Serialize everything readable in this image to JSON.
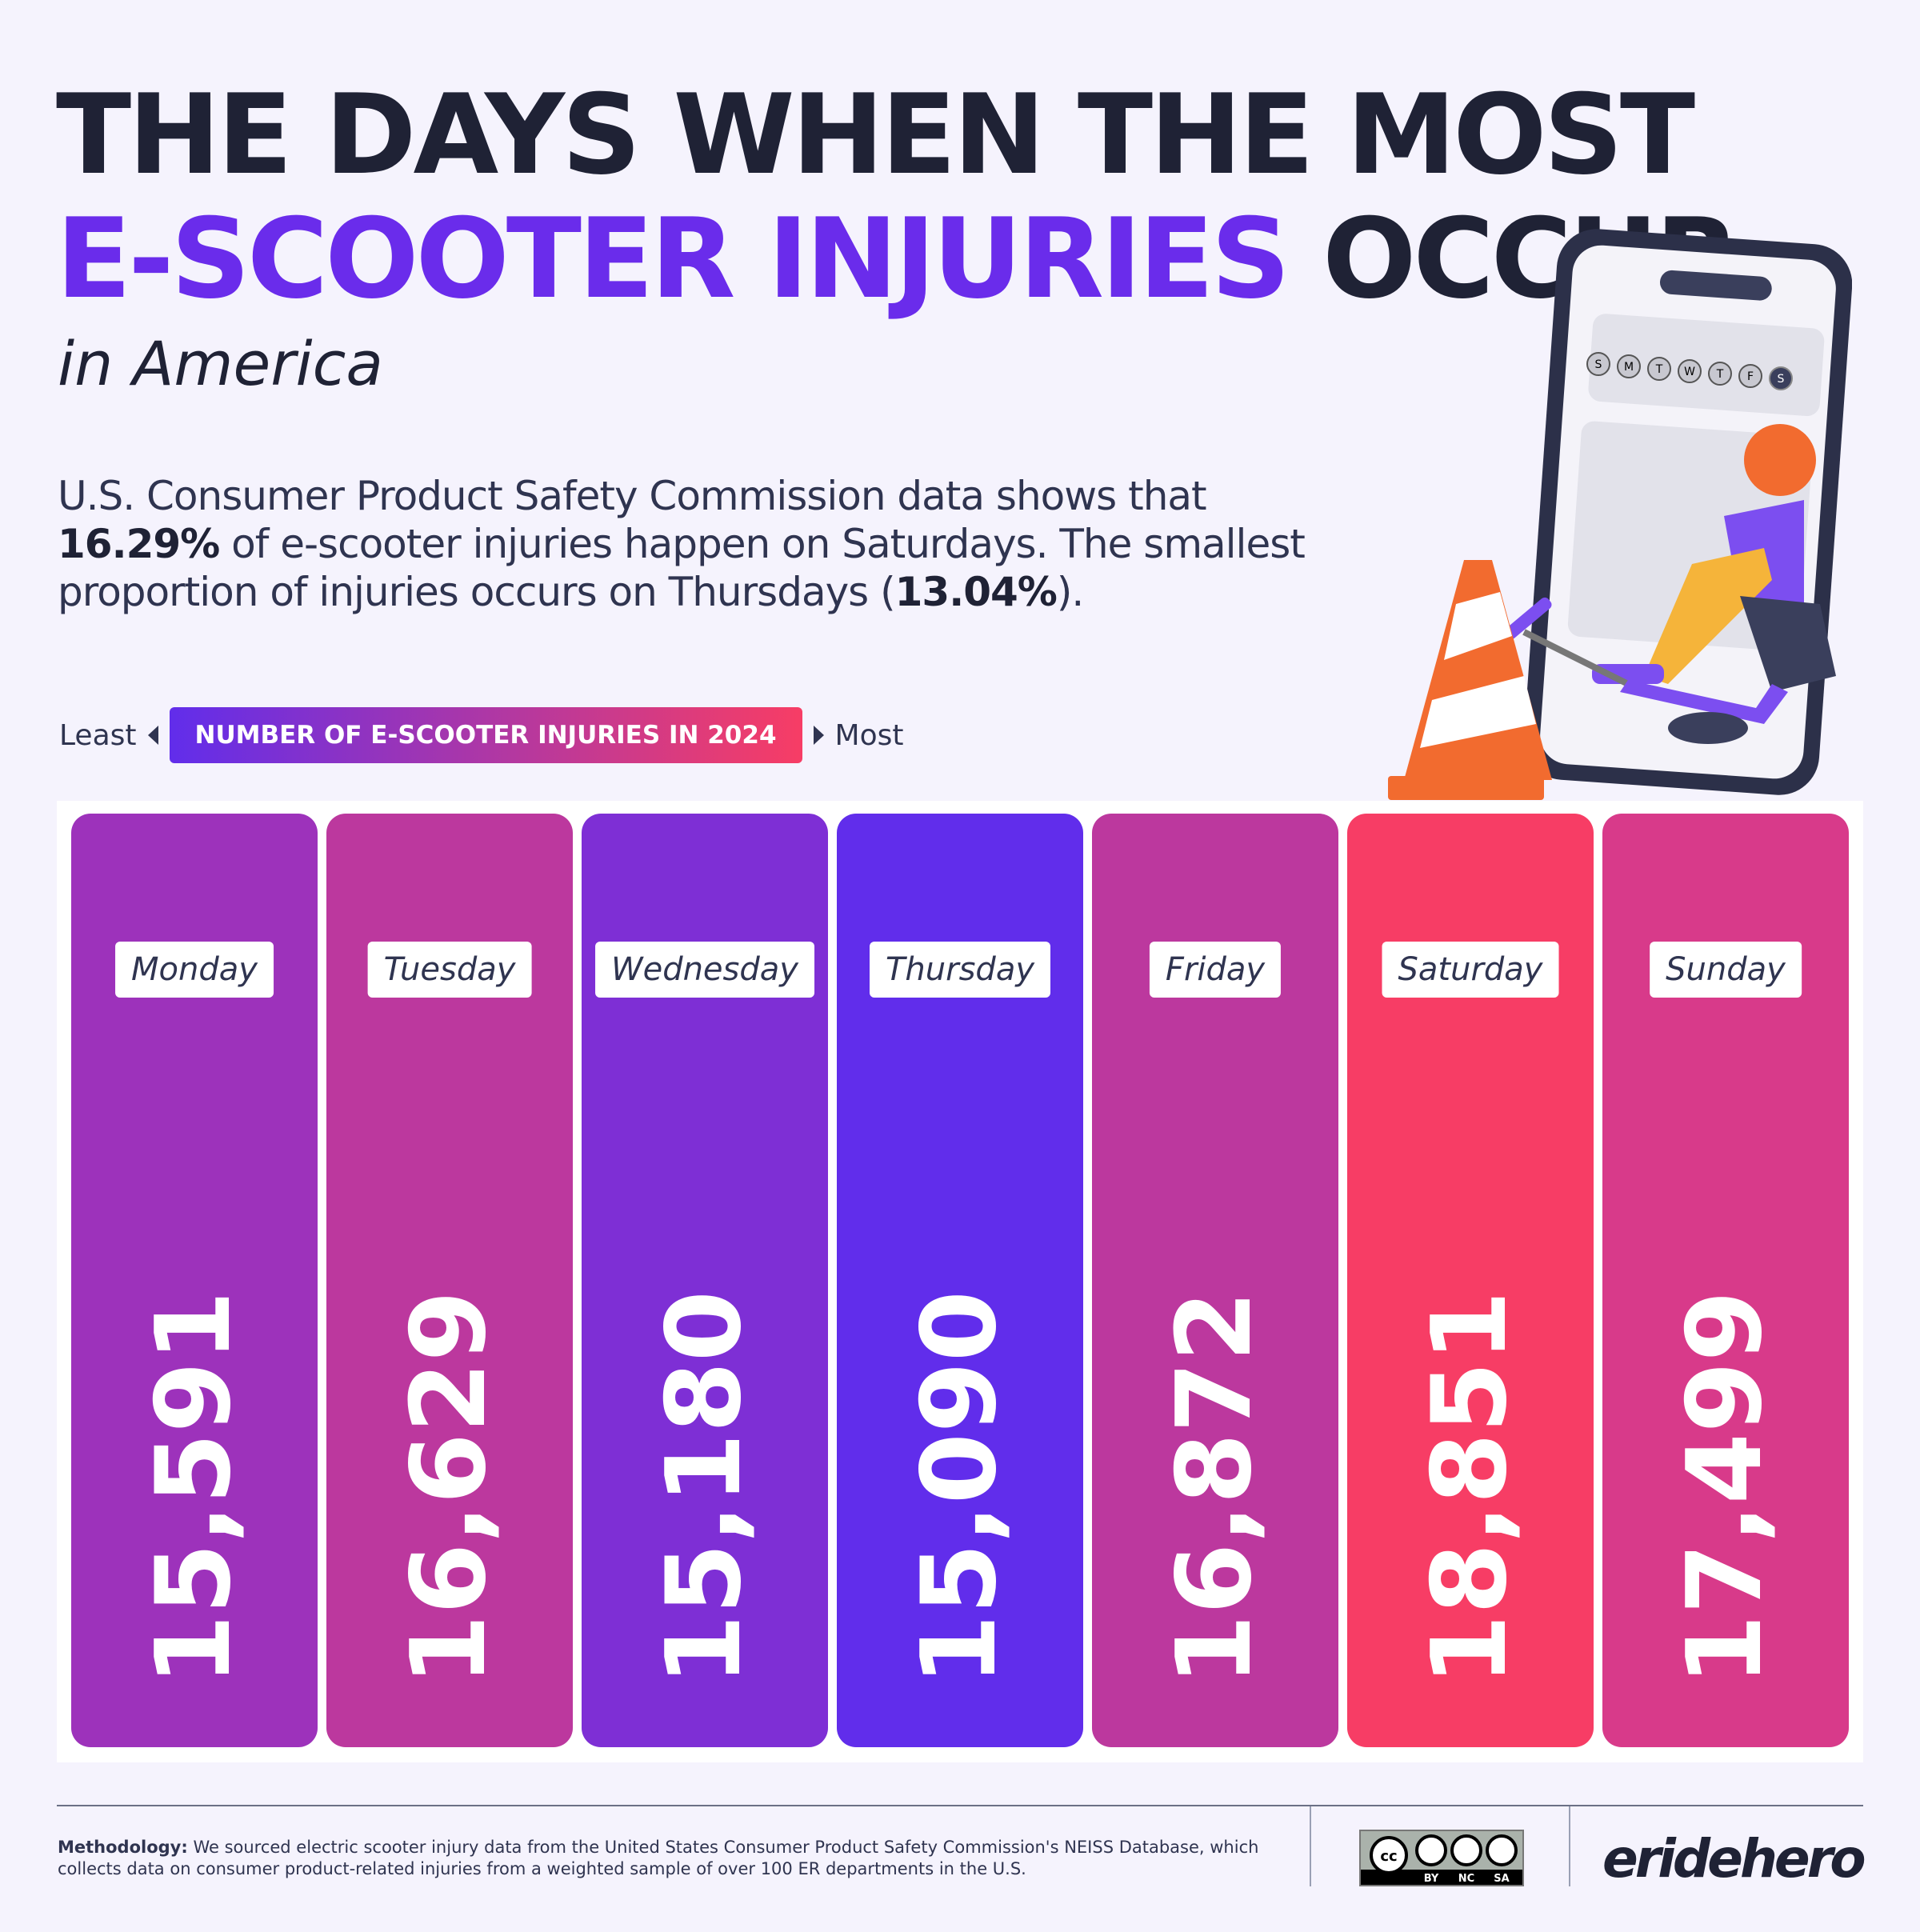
{
  "header": {
    "title_line1": "THE DAYS WHEN THE MOST",
    "title_line2_highlight": "E-SCOOTER INJURIES",
    "title_line2_rest": "OCCUR",
    "subtitle": "in America",
    "para_1": "U.S. Consumer Product Safety Commission data shows that ",
    "para_bold_1": "16.29%",
    "para_2": " of e-scooter injuries happen on Saturdays. The smallest proportion of injuries occurs on Thursdays (",
    "para_bold_2": "13.04%",
    "para_3": ")."
  },
  "legend": {
    "least": "Least",
    "label": "NUMBER OF E-SCOOTER INJURIES IN 2024",
    "most": "Most"
  },
  "colors": {
    "background": "#f5f3fd",
    "title": "#1f2235",
    "accent": "#6a2ceb",
    "least": "#612deb",
    "most": "#f73d65"
  },
  "chart_data": {
    "type": "bar",
    "title": "NUMBER OF E-SCOOTER INJURIES IN 2024",
    "categories": [
      "Monday",
      "Tuesday",
      "Wednesday",
      "Thursday",
      "Friday",
      "Saturday",
      "Sunday"
    ],
    "values": [
      15591,
      16629,
      15180,
      15090,
      16872,
      18851,
      17499
    ],
    "labels": [
      "15,591",
      "16,629",
      "15,180",
      "15,090",
      "16,872",
      "18,851",
      "17,499"
    ],
    "bar_colors": [
      "#9d32bb",
      "#bc389e",
      "#7e2fd5",
      "#612deb",
      "#bc389e",
      "#f73d65",
      "#d83a8a"
    ],
    "encoding": "color scale from least (purple) to most (red); equal-height bars"
  },
  "footer": {
    "methodology_label": "Methodology:",
    "methodology_text": " We sourced electric scooter injury data from the United States Consumer Product Safety Commission's NEISS Database, which collects data on consumer product-related injuries from a weighted sample of over 100 ER departments in the U.S.",
    "license": {
      "by": "BY",
      "nc": "NC",
      "sa": "SA",
      "cc": "cc"
    },
    "brand": "eridehero"
  },
  "illustration": {
    "phone_days": [
      "S",
      "M",
      "T",
      "W",
      "T",
      "F",
      "S"
    ]
  }
}
